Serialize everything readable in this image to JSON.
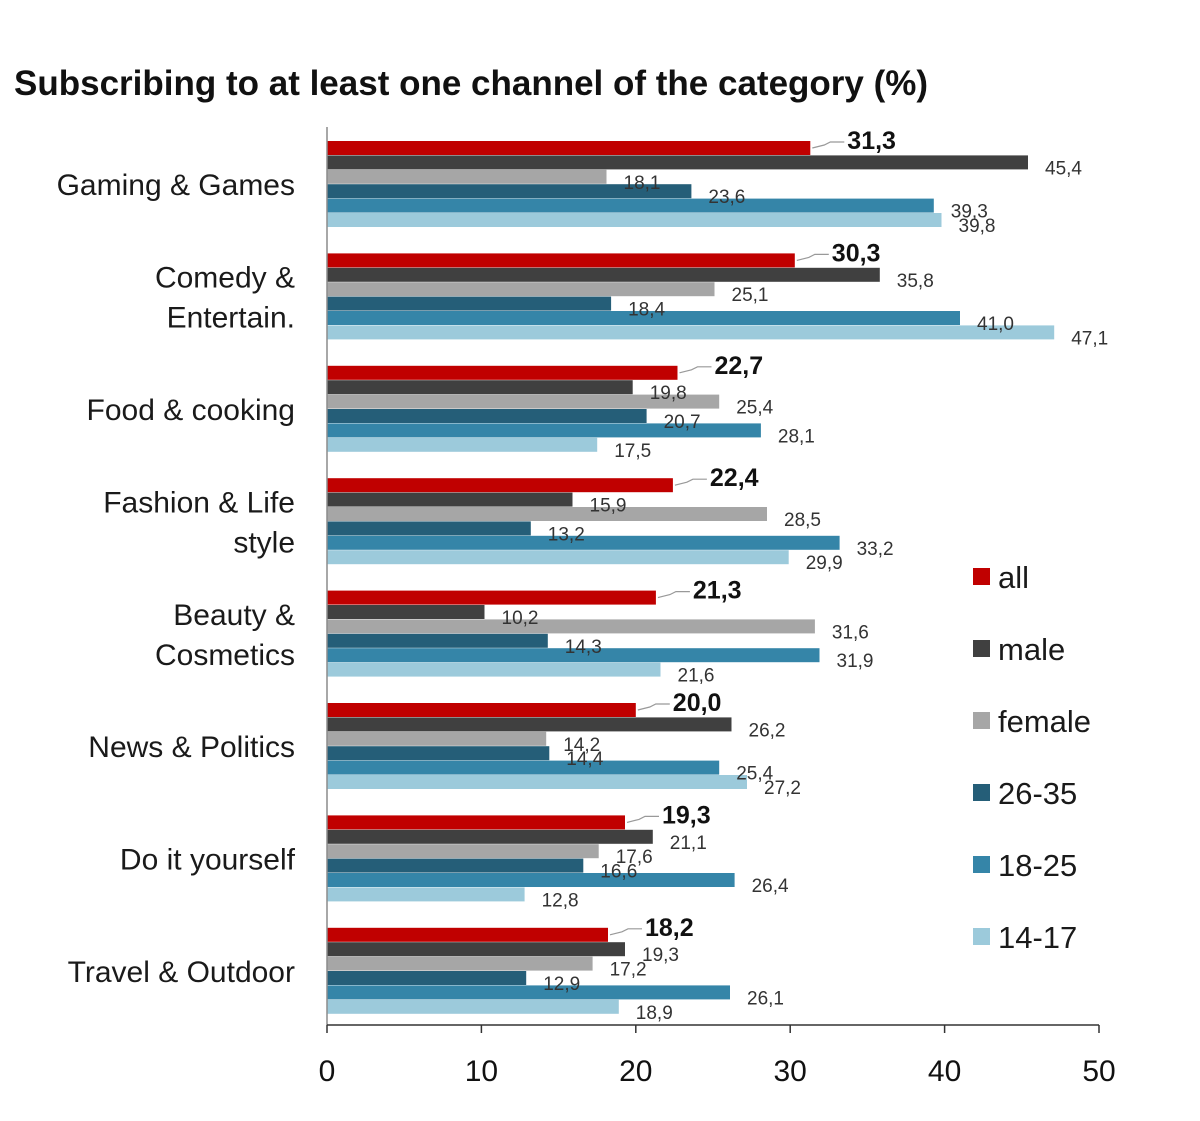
{
  "chart_data": {
    "type": "bar",
    "orientation": "horizontal",
    "title": "Subscribing to at least one channel of the category (%)",
    "xlabel": "",
    "ylabel": "",
    "xlim": [
      0,
      50
    ],
    "xticks": [
      0,
      10,
      20,
      30,
      40,
      50
    ],
    "grid": false,
    "legend_position": "right",
    "categories": [
      [
        "Gaming & Games"
      ],
      [
        "Comedy &",
        "Entertain."
      ],
      [
        "Food & cooking"
      ],
      [
        "Fashion & Life",
        "style"
      ],
      [
        "Beauty &",
        "Cosmetics"
      ],
      [
        "News & Politics"
      ],
      [
        "Do it yourself"
      ],
      [
        "Travel & Outdoor"
      ]
    ],
    "series": [
      {
        "name": "all",
        "color": "#c00000",
        "values": [
          31.3,
          30.3,
          22.7,
          22.4,
          21.3,
          20.0,
          19.3,
          18.2
        ],
        "labels": [
          "31,3",
          "30,3",
          "22,7",
          "22,4",
          "21,3",
          "20,0",
          "19,3",
          "18,2"
        ]
      },
      {
        "name": "male",
        "color": "#404040",
        "values": [
          45.4,
          35.8,
          19.8,
          15.9,
          10.2,
          26.2,
          21.1,
          19.3
        ],
        "labels": [
          "45,4",
          "35,8",
          "19,8",
          "15,9",
          "10,2",
          "26,2",
          "21,1",
          "19,3"
        ]
      },
      {
        "name": "female",
        "color": "#a6a6a6",
        "values": [
          18.1,
          25.1,
          25.4,
          28.5,
          31.6,
          14.2,
          17.6,
          17.2
        ],
        "labels": [
          "18,1",
          "25,1",
          "25,4",
          "28,5",
          "31,6",
          "14,2",
          "17,6",
          "17,2"
        ]
      },
      {
        "name": "26-35",
        "color": "#255e78",
        "values": [
          23.6,
          18.4,
          20.7,
          13.2,
          14.3,
          14.4,
          16.6,
          12.9
        ],
        "labels": [
          "23,6",
          "18,4",
          "20,7",
          "13,2",
          "14,3",
          "14,4",
          "16,6",
          "12,9"
        ]
      },
      {
        "name": "18-25",
        "color": "#3585a8",
        "values": [
          39.3,
          41.0,
          28.1,
          33.2,
          31.9,
          25.4,
          26.4,
          26.1
        ],
        "labels": [
          "39,3",
          "41,0",
          "28,1",
          "33,2",
          "31,9",
          "25,4",
          "26,4",
          "26,1"
        ]
      },
      {
        "name": "14-17",
        "color": "#9ccadb",
        "values": [
          39.8,
          47.1,
          17.5,
          29.9,
          21.6,
          27.2,
          12.8,
          18.9
        ],
        "labels": [
          "39,8",
          "47,1",
          "17,5",
          "29,9",
          "21,6",
          "27,2",
          "12,8",
          "18,9"
        ]
      }
    ]
  }
}
